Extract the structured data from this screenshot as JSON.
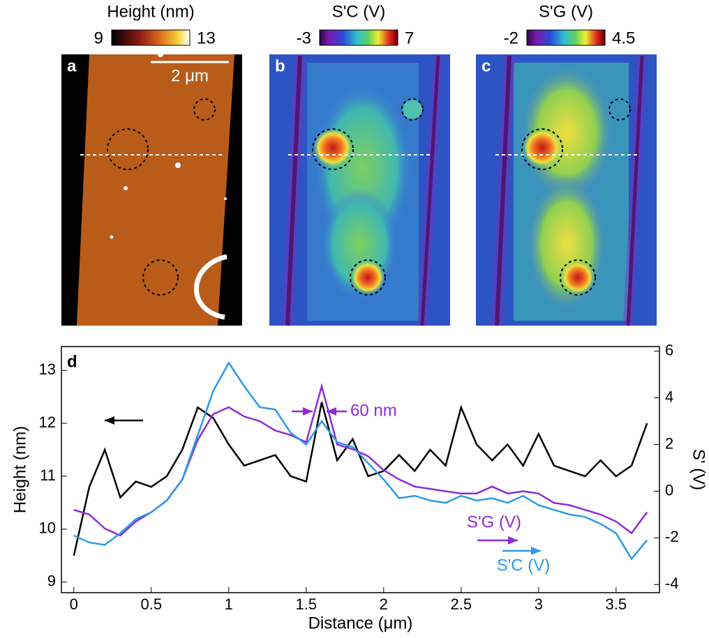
{
  "panels": [
    {
      "label": "a",
      "colorbar": {
        "title": "Height (nm)",
        "min": 9,
        "max": 13
      },
      "scale_bar": "2 μm"
    },
    {
      "label": "b",
      "colorbar": {
        "title": "S'C (V)",
        "min": -3,
        "max": 7
      }
    },
    {
      "label": "c",
      "colorbar": {
        "title": "S'G (V)",
        "min": -2,
        "max": 4.5
      }
    }
  ],
  "chart_data": {
    "type": "line",
    "panel_label": "d",
    "xlabel": "Distance (μm)",
    "ylabel": "Height (nm)",
    "y2label": "S' (V)",
    "x": [
      0,
      0.1,
      0.2,
      0.3,
      0.4,
      0.5,
      0.6,
      0.7,
      0.8,
      0.9,
      1.0,
      1.1,
      1.2,
      1.3,
      1.4,
      1.5,
      1.6,
      1.7,
      1.8,
      1.9,
      2.0,
      2.1,
      2.2,
      2.3,
      2.4,
      2.5,
      2.6,
      2.7,
      2.8,
      2.9,
      3.0,
      3.1,
      3.2,
      3.3,
      3.4,
      3.5,
      3.6,
      3.7
    ],
    "xlim": [
      -0.08,
      3.78
    ],
    "xticks": [
      0,
      0.5,
      1,
      1.5,
      2,
      2.5,
      3,
      3.5
    ],
    "ylim": [
      8.8,
      13.45
    ],
    "yticks": [
      9,
      10,
      11,
      12,
      13
    ],
    "y2lim": [
      -4.35,
      6.2
    ],
    "y2ticks": [
      -4,
      -2,
      0,
      2,
      4,
      6
    ],
    "series": [
      {
        "color": "#000000",
        "values": [
          9.5,
          10.8,
          11.5,
          10.6,
          10.9,
          10.8,
          11.0,
          11.5,
          12.3,
          12.1,
          11.6,
          11.2,
          11.3,
          11.4,
          11.0,
          10.9,
          12.4,
          11.3,
          11.7,
          11.0,
          11.1,
          11.4,
          11.1,
          11.5,
          11.2,
          12.3,
          11.6,
          11.3,
          11.6,
          11.2,
          11.8,
          11.2,
          11.1,
          11.0,
          11.3,
          11.0,
          11.2,
          12.0
        ]
      },
      {
        "name": "S'G (V)",
        "axis": "y2",
        "color": "#8e2bd6",
        "values": [
          -0.8,
          -1.0,
          -1.6,
          -1.9,
          -1.3,
          -0.9,
          -0.4,
          0.5,
          2.2,
          3.3,
          3.6,
          3.2,
          3.0,
          2.6,
          2.4,
          2.1,
          4.5,
          2.0,
          1.8,
          1.5,
          0.9,
          0.5,
          0.2,
          0.1,
          0.0,
          -0.1,
          -0.1,
          0.2,
          -0.1,
          0.0,
          -0.1,
          -0.5,
          -0.6,
          -0.8,
          -1.0,
          -1.3,
          -1.8,
          -0.9
        ]
      },
      {
        "name": "S'C (V)",
        "axis": "y2",
        "color": "#2a9ae8",
        "values": [
          -1.9,
          -2.2,
          -2.3,
          -1.8,
          -1.2,
          -0.9,
          -0.4,
          0.5,
          2.4,
          4.3,
          5.5,
          4.5,
          3.6,
          3.5,
          2.5,
          2.0,
          3.0,
          2.1,
          1.9,
          1.2,
          0.5,
          -0.3,
          -0.2,
          -0.4,
          -0.5,
          -0.2,
          -0.4,
          -0.3,
          -0.5,
          -0.2,
          -0.6,
          -0.8,
          -1.0,
          -1.1,
          -1.4,
          -1.8,
          -2.9,
          -2.1
        ]
      }
    ],
    "annotation": "60 nm"
  }
}
